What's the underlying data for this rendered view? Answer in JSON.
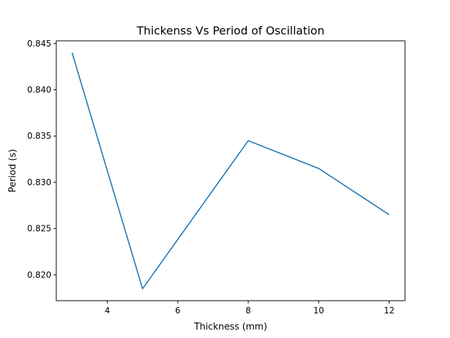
{
  "chart_data": {
    "type": "line",
    "title": "Thickenss Vs Period of Oscillation",
    "xlabel": "Thickness (mm)",
    "ylabel": "Period (s)",
    "xlim": [
      2.55,
      12.45
    ],
    "ylim": [
      0.81721,
      0.84529
    ],
    "xticks": [
      4,
      6,
      8,
      10,
      12
    ],
    "yticks": [
      0.82,
      0.825,
      0.83,
      0.835,
      0.84,
      0.845
    ],
    "xtick_labels": [
      "4",
      "6",
      "8",
      "10",
      "12"
    ],
    "ytick_labels": [
      "0.820",
      "0.825",
      "0.830",
      "0.835",
      "0.840",
      "0.845"
    ],
    "grid": false,
    "series": [
      {
        "color": "#1f77b4",
        "x": [
          3,
          5,
          8,
          10,
          12
        ],
        "y": [
          0.844,
          0.8185,
          0.8345,
          0.8315,
          0.8265
        ]
      }
    ]
  }
}
